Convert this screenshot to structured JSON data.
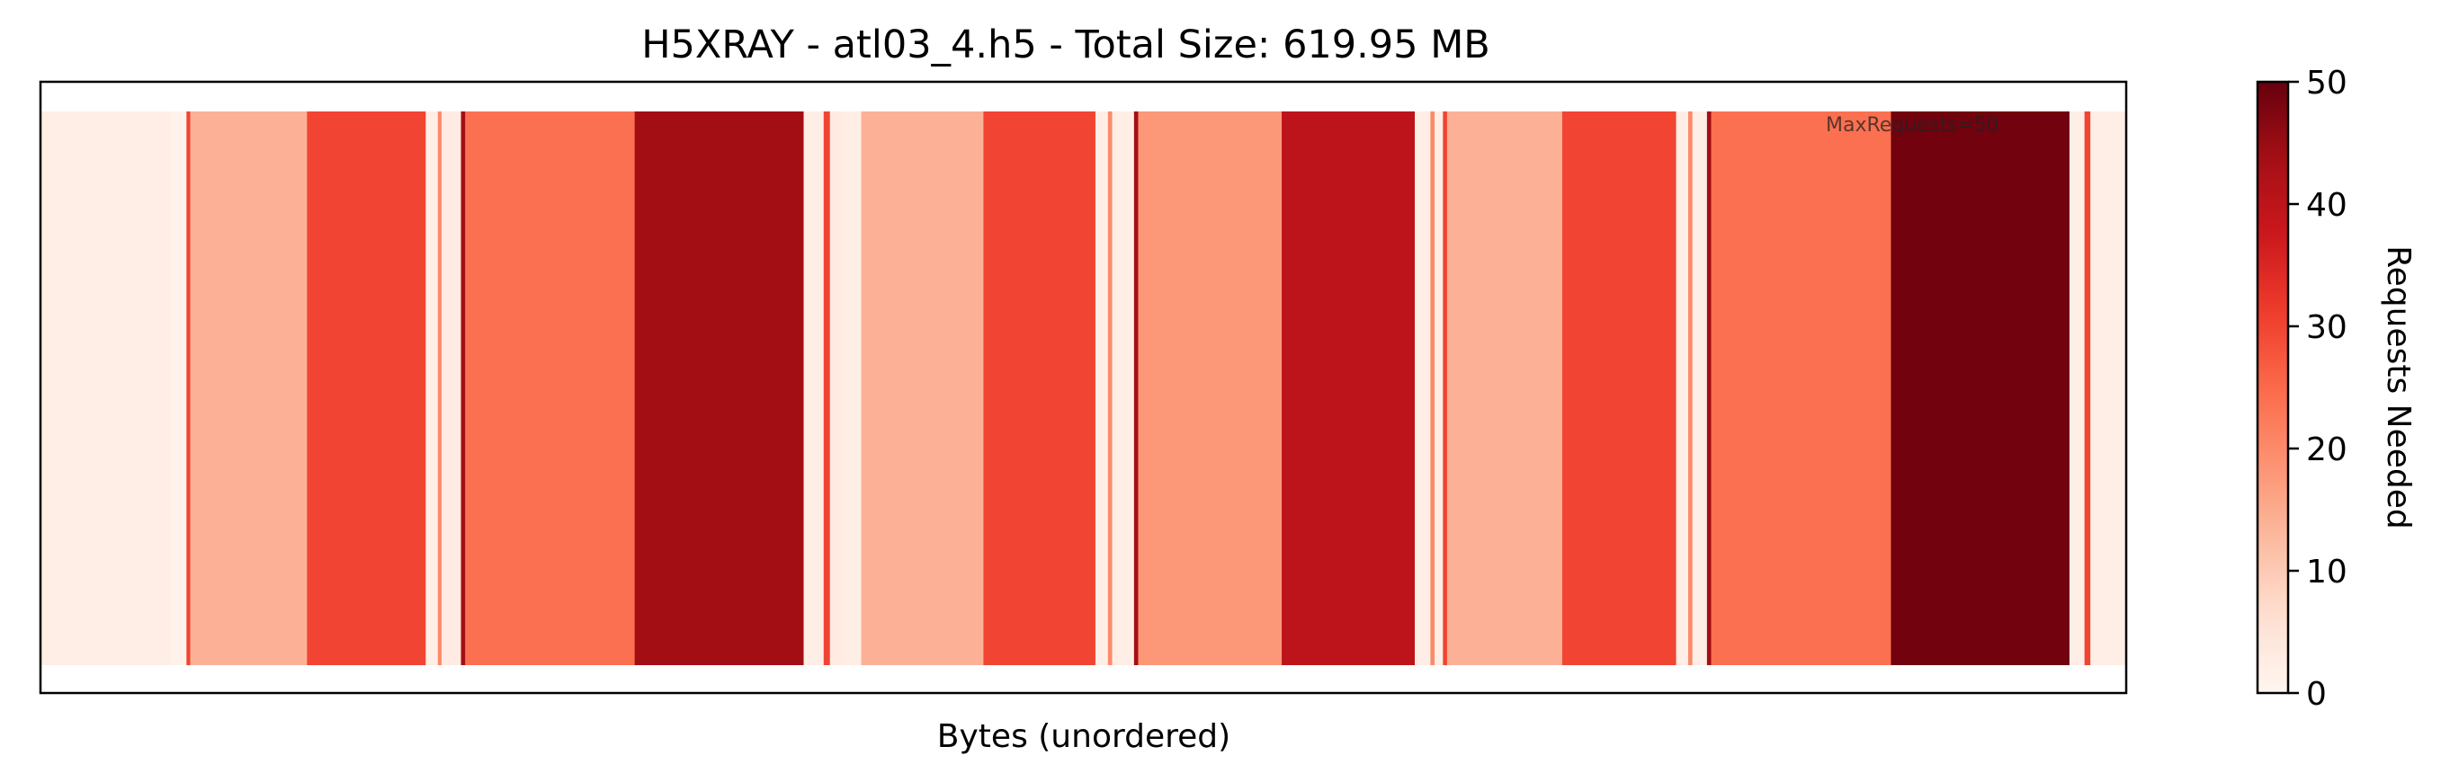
{
  "chart_data": {
    "type": "heatmap",
    "title": "H5XRAY - atl03_4.h5 - Total Size: 619.95 MB",
    "xlabel": "Bytes (unordered)",
    "colorbar_label": "Requests Needed",
    "annotation": "MaxRequests=50",
    "colormap": "Reds",
    "vmin": 0,
    "vmax": 50,
    "colorbar_ticks": [
      0,
      10,
      20,
      30,
      40,
      50
    ],
    "xlim": [
      0,
      1
    ],
    "grid": false,
    "segments": [
      {
        "start": 0.0,
        "end": 0.0628,
        "value": 2
      },
      {
        "start": 0.0628,
        "end": 0.07,
        "value": 1
      },
      {
        "start": 0.07,
        "end": 0.0718,
        "value": 30
      },
      {
        "start": 0.0718,
        "end": 0.1278,
        "value": 14
      },
      {
        "start": 0.1278,
        "end": 0.1847,
        "value": 30
      },
      {
        "start": 0.1847,
        "end": 0.1905,
        "value": 2
      },
      {
        "start": 0.1905,
        "end": 0.1923,
        "value": 20
      },
      {
        "start": 0.1923,
        "end": 0.2016,
        "value": 3
      },
      {
        "start": 0.2016,
        "end": 0.2036,
        "value": 44
      },
      {
        "start": 0.2036,
        "end": 0.2849,
        "value": 24
      },
      {
        "start": 0.2849,
        "end": 0.3659,
        "value": 44
      },
      {
        "start": 0.3659,
        "end": 0.3755,
        "value": 2
      },
      {
        "start": 0.3755,
        "end": 0.3785,
        "value": 30
      },
      {
        "start": 0.3785,
        "end": 0.385,
        "value": 3
      },
      {
        "start": 0.385,
        "end": 0.3935,
        "value": 2
      },
      {
        "start": 0.3935,
        "end": 0.4521,
        "value": 14
      },
      {
        "start": 0.4521,
        "end": 0.5058,
        "value": 30
      },
      {
        "start": 0.5058,
        "end": 0.5118,
        "value": 2
      },
      {
        "start": 0.5118,
        "end": 0.5138,
        "value": 20
      },
      {
        "start": 0.5138,
        "end": 0.5243,
        "value": 2
      },
      {
        "start": 0.5243,
        "end": 0.5263,
        "value": 44
      },
      {
        "start": 0.5263,
        "end": 0.5951,
        "value": 18
      },
      {
        "start": 0.5951,
        "end": 0.6589,
        "value": 40
      },
      {
        "start": 0.6589,
        "end": 0.6664,
        "value": 2
      },
      {
        "start": 0.6664,
        "end": 0.6684,
        "value": 20
      },
      {
        "start": 0.6684,
        "end": 0.6724,
        "value": 2
      },
      {
        "start": 0.6724,
        "end": 0.6744,
        "value": 30
      },
      {
        "start": 0.6744,
        "end": 0.7296,
        "value": 14
      },
      {
        "start": 0.7296,
        "end": 0.7842,
        "value": 30
      },
      {
        "start": 0.7842,
        "end": 0.79,
        "value": 2
      },
      {
        "start": 0.79,
        "end": 0.792,
        "value": 20
      },
      {
        "start": 0.792,
        "end": 0.799,
        "value": 2
      },
      {
        "start": 0.799,
        "end": 0.801,
        "value": 44
      },
      {
        "start": 0.801,
        "end": 0.8872,
        "value": 24
      },
      {
        "start": 0.8872,
        "end": 0.9728,
        "value": 49
      },
      {
        "start": 0.9728,
        "end": 0.98,
        "value": 2
      },
      {
        "start": 0.98,
        "end": 0.9828,
        "value": 30
      },
      {
        "start": 0.9828,
        "end": 1.0,
        "value": 2
      }
    ]
  }
}
